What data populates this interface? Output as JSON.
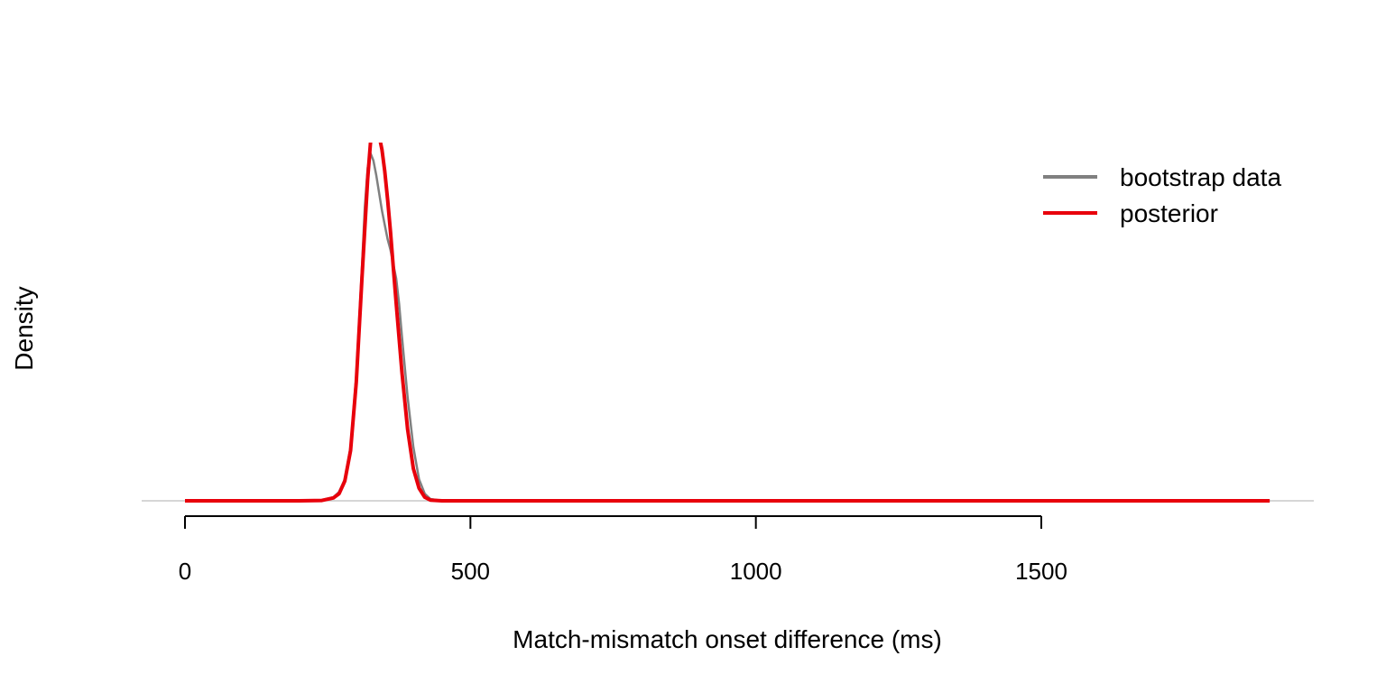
{
  "chart_data": {
    "type": "line",
    "title": "",
    "xlabel": "Match-mismatch onset difference (ms)",
    "ylabel": "Density",
    "xlim": [
      -75,
      1975
    ],
    "ylim": [
      0,
      1.0
    ],
    "x_ticks": [
      0,
      500,
      1000,
      1500
    ],
    "x_tick_labels": [
      "0",
      "500",
      "1000",
      "1500"
    ],
    "y_ticks_shown": false,
    "grid": false,
    "legend": {
      "position": "top-right"
    },
    "series": [
      {
        "name": "bootstrap data",
        "color": "#808080",
        "x": [
          0,
          200,
          240,
          260,
          270,
          280,
          290,
          300,
          310,
          315,
          320,
          325,
          330,
          335,
          340,
          345,
          350,
          355,
          360,
          365,
          370,
          375,
          380,
          390,
          400,
          410,
          420,
          430,
          450,
          500,
          1900
        ],
        "y": [
          0,
          0,
          0.002,
          0.01,
          0.025,
          0.06,
          0.15,
          0.35,
          0.65,
          0.82,
          0.93,
          0.97,
          0.95,
          0.91,
          0.86,
          0.81,
          0.77,
          0.73,
          0.7,
          0.66,
          0.62,
          0.55,
          0.46,
          0.29,
          0.15,
          0.06,
          0.02,
          0.005,
          0.0,
          0,
          0
        ]
      },
      {
        "name": "posterior",
        "color": "#e8000b",
        "x": [
          0,
          200,
          240,
          260,
          270,
          280,
          290,
          300,
          310,
          320,
          325,
          330,
          335,
          340,
          345,
          350,
          355,
          360,
          365,
          370,
          380,
          390,
          400,
          410,
          420,
          430,
          450,
          500,
          1900
        ],
        "y": [
          0,
          0,
          0.001,
          0.008,
          0.02,
          0.055,
          0.14,
          0.33,
          0.62,
          0.9,
          1.0,
          1.05,
          1.05,
          1.02,
          0.98,
          0.92,
          0.84,
          0.75,
          0.65,
          0.55,
          0.36,
          0.2,
          0.09,
          0.035,
          0.01,
          0.002,
          0,
          0,
          0
        ]
      }
    ]
  }
}
